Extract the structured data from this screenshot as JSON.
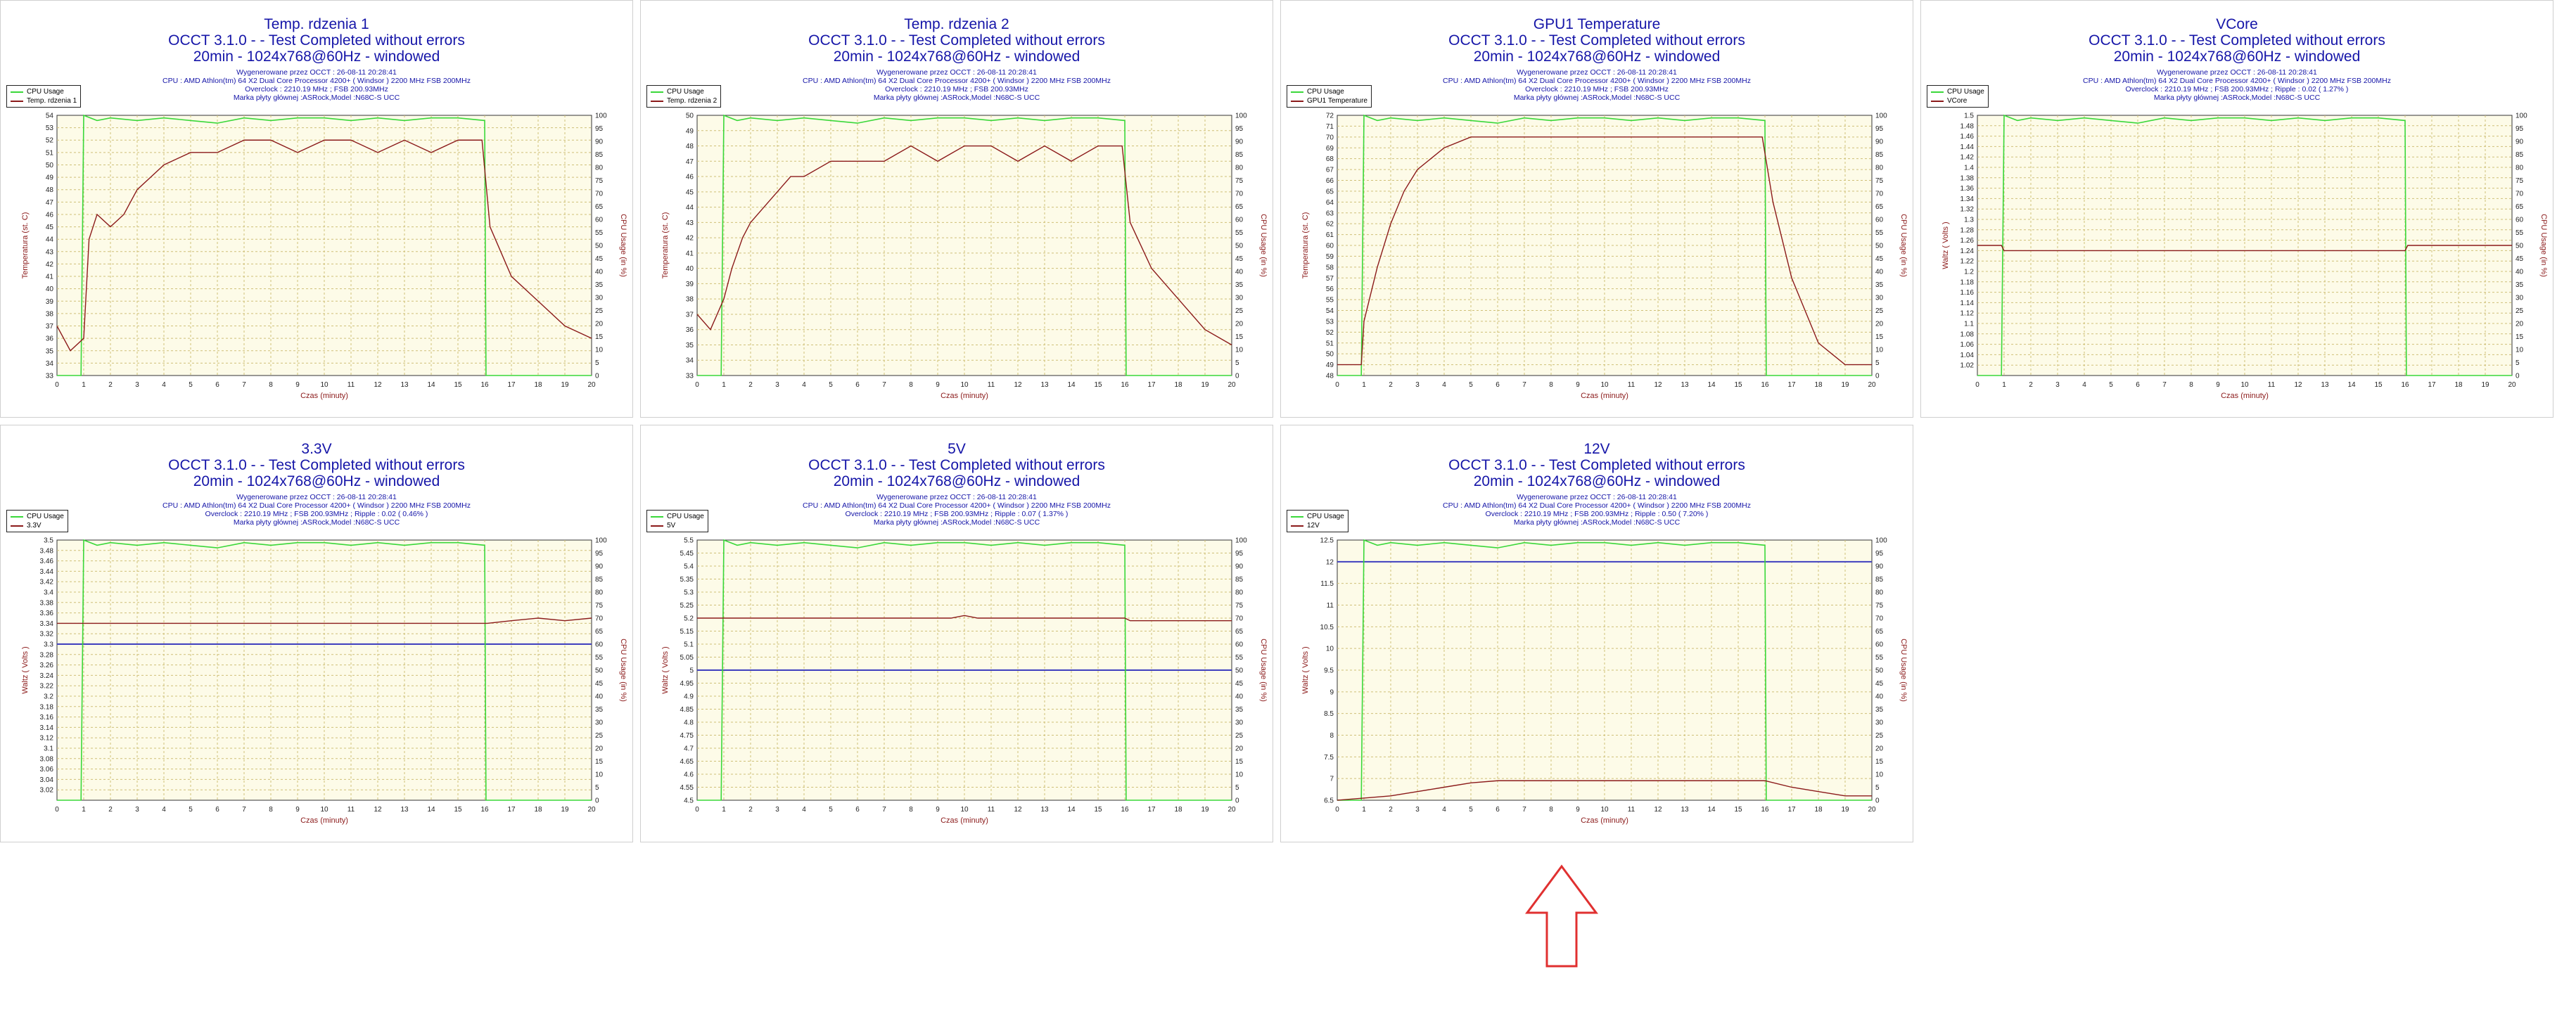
{
  "meta": {
    "test_line": "OCCT 3.1.0 -  - Test Completed without errors",
    "mode_line": "20min - 1024x768@60Hz - windowed",
    "generated": "Wygenerowane przez OCCT : 26-08-11 20:28:41",
    "cpu": "CPU : AMD Athlon(tm) 64 X2 Dual Core Processor 4200+ ( Windsor ) 2200 MHz FSB 200MHz",
    "board": "Marka płyty głównej :ASRock,Model :N68C-S UCC",
    "x_label": "Czas (minuty)",
    "cpu_legend": "CPU Usage",
    "cpu_axis_label": "CPU Usage (in %)"
  },
  "colors": {
    "cpu": "#3ad83a",
    "metric": "#8b1a1a",
    "nominal": "#3f3fbf",
    "grid": "#cfc078",
    "plot_bg": "#fdfbe8",
    "arrow": "#e03030"
  },
  "chart_data": [
    {
      "type": "line",
      "title": "Temp. rdzenia 1",
      "ylabel": "Temperatura (st. C)",
      "overclock": "Overclock : 2210.19 MHz ; FSB 200.93MHz",
      "legend": "Temp. rdzenia 1",
      "ylim": [
        33,
        54
      ],
      "yticks": [
        33,
        34,
        35,
        36,
        37,
        38,
        39,
        40,
        41,
        42,
        43,
        44,
        45,
        46,
        47,
        48,
        49,
        50,
        51,
        52,
        53,
        54
      ],
      "ytick_labels": [
        "33",
        "34",
        "35",
        "36",
        "37",
        "38",
        "39",
        "40",
        "41",
        "42",
        "43",
        "44",
        "45",
        "46",
        "47",
        "48",
        "49",
        "50",
        "51",
        "52",
        "53",
        "54"
      ],
      "nominal": null,
      "kind": "temp",
      "x": [
        0,
        0.5,
        1,
        1.2,
        1.5,
        2,
        2.5,
        3,
        3.5,
        4,
        5,
        6,
        7,
        8,
        9,
        10,
        11,
        12,
        13,
        14,
        15,
        15.9,
        16.2,
        17,
        18,
        19,
        20
      ],
      "values": [
        37,
        35,
        36,
        44,
        46,
        45,
        46,
        48,
        49,
        50,
        51,
        51,
        52,
        52,
        51,
        52,
        52,
        51,
        52,
        51,
        52,
        52,
        45,
        41,
        39,
        37,
        36
      ],
      "cpu_x": [
        0,
        0.9,
        1,
        1.5,
        2,
        3,
        4,
        5,
        6,
        7,
        8,
        9,
        10,
        11,
        12,
        13,
        14,
        15,
        16,
        16.05,
        20
      ],
      "cpu_values": [
        0,
        0,
        100,
        98,
        99,
        98,
        99,
        98,
        97,
        99,
        98,
        99,
        99,
        98,
        99,
        98,
        99,
        99,
        98,
        0,
        0
      ]
    },
    {
      "type": "line",
      "title": "Temp. rdzenia 2",
      "ylabel": "Temperatura (st. C)",
      "overclock": "Overclock : 2210.19 MHz ; FSB 200.93MHz",
      "legend": "Temp. rdzenia 2",
      "ylim": [
        33,
        50
      ],
      "yticks": [
        33,
        34,
        35,
        36,
        37,
        38,
        39,
        40,
        41,
        42,
        43,
        44,
        45,
        46,
        47,
        48,
        49,
        50
      ],
      "ytick_labels": [
        "33",
        "34",
        "35",
        "36",
        "37",
        "38",
        "39",
        "40",
        "41",
        "42",
        "43",
        "44",
        "45",
        "46",
        "47",
        "48",
        "49",
        "50"
      ],
      "nominal": null,
      "kind": "temp",
      "x": [
        0,
        0.5,
        1,
        1.3,
        1.7,
        2,
        2.5,
        3,
        3.5,
        4,
        5,
        6,
        7,
        8,
        9,
        10,
        11,
        12,
        13,
        14,
        15,
        15.9,
        16.2,
        17,
        18,
        19,
        20
      ],
      "values": [
        37,
        36,
        38,
        40,
        42,
        43,
        44,
        45,
        46,
        46,
        47,
        47,
        47,
        48,
        47,
        48,
        48,
        47,
        48,
        47,
        48,
        48,
        43,
        40,
        38,
        36,
        35
      ],
      "cpu_x": [
        0,
        0.9,
        1,
        1.5,
        2,
        3,
        4,
        5,
        6,
        7,
        8,
        9,
        10,
        11,
        12,
        13,
        14,
        15,
        16,
        16.05,
        20
      ],
      "cpu_values": [
        0,
        0,
        100,
        98,
        99,
        98,
        99,
        98,
        97,
        99,
        98,
        99,
        99,
        98,
        99,
        98,
        99,
        99,
        98,
        0,
        0
      ]
    },
    {
      "type": "line",
      "title": "GPU1 Temperature",
      "ylabel": "Temperatura (st. C)",
      "overclock": "Overclock : 2210.19 MHz ; FSB 200.93MHz",
      "legend": "GPU1 Temperature",
      "ylim": [
        48,
        72
      ],
      "yticks": [
        48,
        49,
        50,
        51,
        52,
        53,
        54,
        55,
        56,
        57,
        58,
        59,
        60,
        61,
        62,
        63,
        64,
        65,
        66,
        67,
        68,
        69,
        70,
        71,
        72
      ],
      "ytick_labels": [
        "48",
        "49",
        "50",
        "51",
        "52",
        "53",
        "54",
        "55",
        "56",
        "57",
        "58",
        "59",
        "60",
        "61",
        "62",
        "63",
        "64",
        "65",
        "66",
        "67",
        "68",
        "69",
        "70",
        "71",
        "72"
      ],
      "nominal": null,
      "kind": "temp",
      "x": [
        0,
        0.9,
        1,
        1.5,
        2,
        2.5,
        3,
        3.5,
        4,
        5,
        6,
        7,
        8,
        9,
        10,
        11,
        12,
        13,
        14,
        15,
        15.9,
        16.3,
        17,
        17.5,
        18,
        18.5,
        19,
        20
      ],
      "values": [
        49,
        49,
        53,
        58,
        62,
        65,
        67,
        68,
        69,
        70,
        70,
        70,
        70,
        70,
        70,
        70,
        70,
        70,
        70,
        70,
        70,
        64,
        57,
        54,
        51,
        50,
        49,
        49
      ],
      "cpu_x": [
        0,
        0.9,
        1,
        1.5,
        2,
        3,
        4,
        5,
        6,
        7,
        8,
        9,
        10,
        11,
        12,
        13,
        14,
        15,
        16,
        16.05,
        20
      ],
      "cpu_values": [
        0,
        0,
        100,
        98,
        99,
        98,
        99,
        98,
        97,
        99,
        98,
        99,
        99,
        98,
        99,
        98,
        99,
        99,
        98,
        0,
        0
      ]
    },
    {
      "type": "line",
      "title": "VCore",
      "ylabel": "Waltz ( Volts )",
      "overclock": "Overclock : 2210.19 MHz ; FSB 200.93MHz ; Ripple : 0.02 ( 1.27% )",
      "legend": "VCore",
      "ylim": [
        1,
        1.5
      ],
      "yticks": [
        1.02,
        1.04,
        1.06,
        1.08,
        1.1,
        1.12,
        1.14,
        1.16,
        1.18,
        1.2,
        1.22,
        1.24,
        1.26,
        1.28,
        1.3,
        1.32,
        1.34,
        1.36,
        1.38,
        1.4,
        1.42,
        1.44,
        1.46,
        1.48,
        1.5
      ],
      "ytick_labels": [
        "1.02",
        "1.04",
        "1.06",
        "1.08",
        "1.1",
        "1.12",
        "1.14",
        "1.16",
        "1.18",
        "1.2",
        "1.22",
        "1.24",
        "1.26",
        "1.28",
        "1.3",
        "1.32",
        "1.34",
        "1.36",
        "1.38",
        "1.4",
        "1.42",
        "1.44",
        "1.46",
        "1.48",
        "1.5"
      ],
      "nominal": null,
      "kind": "volt",
      "x": [
        0,
        0.9,
        1,
        16,
        16.1,
        20
      ],
      "values": [
        1.25,
        1.25,
        1.24,
        1.24,
        1.25,
        1.25
      ],
      "cpu_x": [
        0,
        0.9,
        1,
        1.5,
        2,
        3,
        4,
        5,
        6,
        7,
        8,
        9,
        10,
        11,
        12,
        13,
        14,
        15,
        16,
        16.05,
        20
      ],
      "cpu_values": [
        0,
        0,
        100,
        98,
        99,
        98,
        99,
        98,
        97,
        99,
        98,
        99,
        99,
        98,
        99,
        98,
        99,
        99,
        98,
        0,
        0
      ]
    },
    {
      "type": "line",
      "title": "3.3V",
      "ylabel": "Waltz ( Volts )",
      "overclock": "Overclock : 2210.19 MHz ; FSB 200.93MHz ; Ripple : 0.02 ( 0.46% )",
      "legend": "3.3V",
      "ylim": [
        3,
        3.5
      ],
      "yticks": [
        3.02,
        3.04,
        3.06,
        3.08,
        3.1,
        3.12,
        3.14,
        3.16,
        3.18,
        3.2,
        3.22,
        3.24,
        3.26,
        3.28,
        3.3,
        3.32,
        3.34,
        3.36,
        3.38,
        3.4,
        3.42,
        3.44,
        3.46,
        3.48,
        3.5
      ],
      "ytick_labels": [
        "3.02",
        "3.04",
        "3.06",
        "3.08",
        "3.1",
        "3.12",
        "3.14",
        "3.16",
        "3.18",
        "3.2",
        "3.22",
        "3.24",
        "3.26",
        "3.28",
        "3.3",
        "3.32",
        "3.34",
        "3.36",
        "3.38",
        "3.4",
        "3.42",
        "3.44",
        "3.46",
        "3.48",
        "3.5"
      ],
      "nominal": 3.3,
      "kind": "volt",
      "x": [
        0,
        16,
        16.1,
        17,
        18,
        19,
        20
      ],
      "values": [
        3.34,
        3.34,
        3.34,
        3.345,
        3.35,
        3.345,
        3.35
      ],
      "cpu_x": [
        0,
        0.9,
        1,
        1.5,
        2,
        3,
        4,
        5,
        6,
        7,
        8,
        9,
        10,
        11,
        12,
        13,
        14,
        15,
        16,
        16.05,
        20
      ],
      "cpu_values": [
        0,
        0,
        100,
        98,
        99,
        98,
        99,
        98,
        97,
        99,
        98,
        99,
        99,
        98,
        99,
        98,
        99,
        99,
        98,
        0,
        0
      ]
    },
    {
      "type": "line",
      "title": "5V",
      "ylabel": "Waltz ( Volts )",
      "overclock": "Overclock : 2210.19 MHz ; FSB 200.93MHz ; Ripple : 0.07 ( 1.37% )",
      "legend": "5V",
      "ylim": [
        4.5,
        5.5
      ],
      "yticks": [
        4.5,
        4.55,
        4.6,
        4.65,
        4.7,
        4.75,
        4.8,
        4.85,
        4.9,
        4.95,
        5,
        5.05,
        5.1,
        5.15,
        5.2,
        5.25,
        5.3,
        5.35,
        5.4,
        5.45,
        5.5
      ],
      "ytick_labels": [
        "4.5",
        "4.55",
        "4.6",
        "4.65",
        "4.7",
        "4.75",
        "4.8",
        "4.85",
        "4.9",
        "4.95",
        "5",
        "5.05",
        "5.1",
        "5.15",
        "5.2",
        "5.25",
        "5.3",
        "5.35",
        "5.4",
        "5.45",
        "5.5"
      ],
      "nominal": 5,
      "kind": "volt",
      "x": [
        0,
        9.5,
        10,
        10.5,
        16,
        16.2,
        20
      ],
      "values": [
        5.2,
        5.2,
        5.21,
        5.2,
        5.2,
        5.19,
        5.19
      ],
      "cpu_x": [
        0,
        0.9,
        1,
        1.5,
        2,
        3,
        4,
        5,
        6,
        7,
        8,
        9,
        10,
        11,
        12,
        13,
        14,
        15,
        16,
        16.05,
        20
      ],
      "cpu_values": [
        0,
        0,
        100,
        98,
        99,
        98,
        99,
        98,
        97,
        99,
        98,
        99,
        99,
        98,
        99,
        98,
        99,
        99,
        98,
        0,
        0
      ]
    },
    {
      "type": "line",
      "title": "12V",
      "ylabel": "Waltz ( Volts )",
      "overclock": "Overclock : 2210.19 MHz ; FSB 200.93MHz ; Ripple : 0.50 ( 7.20% )",
      "legend": "12V",
      "ylim": [
        6.5,
        12.5
      ],
      "yticks": [
        6.5,
        7,
        7.5,
        8,
        8.5,
        9,
        9.5,
        10,
        10.5,
        11,
        11.5,
        12,
        12.5
      ],
      "ytick_labels": [
        "6.5",
        "7",
        "7.5",
        "8",
        "8.5",
        "9",
        "9.5",
        "10",
        "10.5",
        "11",
        "11.5",
        "12",
        "12.5"
      ],
      "nominal": 12,
      "kind": "volt",
      "x": [
        0,
        1,
        2,
        3,
        4,
        5,
        6,
        16,
        17,
        18,
        19,
        20
      ],
      "values": [
        6.5,
        6.55,
        6.6,
        6.7,
        6.8,
        6.9,
        6.95,
        6.95,
        6.8,
        6.7,
        6.6,
        6.6
      ],
      "cpu_x": [
        0,
        0.9,
        1,
        1.5,
        2,
        3,
        4,
        5,
        6,
        7,
        8,
        9,
        10,
        11,
        12,
        13,
        14,
        15,
        16,
        16.05,
        20
      ],
      "cpu_values": [
        0,
        0,
        100,
        98,
        99,
        98,
        99,
        98,
        97,
        99,
        98,
        99,
        99,
        98,
        99,
        98,
        99,
        99,
        98,
        0,
        0
      ]
    }
  ],
  "x_ticks": [
    "0",
    "1",
    "2",
    "3",
    "4",
    "5",
    "6",
    "7",
    "8",
    "9",
    "10",
    "11",
    "12",
    "13",
    "14",
    "15",
    "16",
    "17",
    "18",
    "19",
    "20"
  ],
  "cpu_ticks": [
    "0",
    "5",
    "10",
    "15",
    "20",
    "25",
    "30",
    "35",
    "40",
    "45",
    "50",
    "55",
    "60",
    "65",
    "70",
    "75",
    "80",
    "85",
    "90",
    "95",
    "100"
  ],
  "annotation": {
    "shape": "arrow-up",
    "color": "#e03030"
  }
}
